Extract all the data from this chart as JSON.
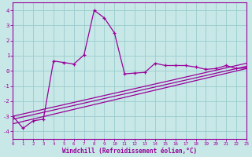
{
  "xlabel": "Windchill (Refroidissement éolien,°C)",
  "bg_color": "#c8e8e8",
  "line_color": "#990099",
  "grid_color": "#99cccc",
  "xlim": [
    0,
    23
  ],
  "ylim": [
    -4.5,
    4.5
  ],
  "yticks": [
    -4,
    -3,
    -2,
    -1,
    0,
    1,
    2,
    3,
    4
  ],
  "xticks": [
    0,
    1,
    2,
    3,
    4,
    5,
    6,
    7,
    8,
    9,
    10,
    11,
    12,
    13,
    14,
    15,
    16,
    17,
    18,
    19,
    20,
    21,
    22,
    23
  ],
  "trend1_x": [
    0,
    23
  ],
  "trend1_y": [
    -3.5,
    0.15
  ],
  "trend2_x": [
    0,
    23
  ],
  "trend2_y": [
    -3.2,
    0.3
  ],
  "trend3_x": [
    0,
    23
  ],
  "trend3_y": [
    -3.0,
    0.5
  ],
  "main_x": [
    0,
    1,
    2,
    3,
    4,
    5,
    6,
    7,
    8,
    9,
    10,
    11,
    12,
    13,
    14,
    15,
    16,
    17,
    18,
    19,
    20,
    21,
    22,
    23
  ],
  "main_y": [
    -3.0,
    -3.8,
    -3.3,
    -3.2,
    0.65,
    0.55,
    0.45,
    1.05,
    4.0,
    3.5,
    2.5,
    -0.2,
    -0.15,
    -0.1,
    0.5,
    0.35,
    0.35,
    0.35,
    0.25,
    0.1,
    0.15,
    0.35,
    0.15,
    0.2
  ]
}
